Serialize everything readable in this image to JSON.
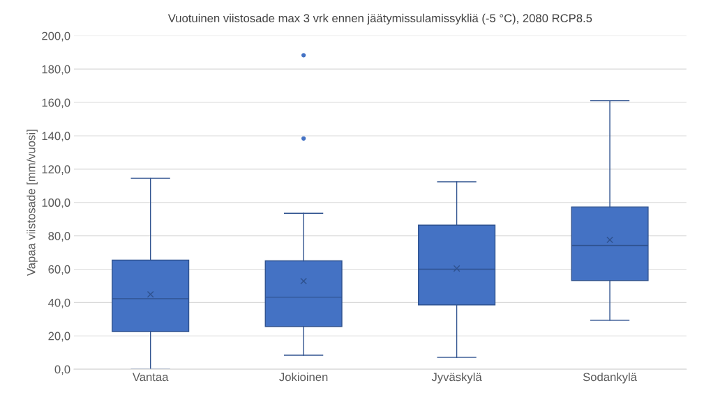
{
  "chart_data": {
    "type": "box",
    "title": "Vuotuinen viistosade max 3 vrk ennen jäätymissulamissykliä (-5 °C), 2080 RCP8.5",
    "ylabel": "Vapaa viistosade [mm/vuosi]",
    "categories": [
      "Vantaa",
      "Jokioinen",
      "Jyväskylä",
      "Sodankylä"
    ],
    "boxes": [
      {
        "low": 0,
        "q1": 22.6,
        "median": 42.3,
        "q3": 65.4,
        "high": 114.5,
        "mean": 44.9
      },
      {
        "low": 8.4,
        "q1": 25.6,
        "median": 43.2,
        "q3": 65.0,
        "high": 93.5,
        "mean": 52.8,
        "outliers": [
          188.3,
          138.4
        ]
      },
      {
        "low": 7.1,
        "q1": 38.6,
        "median": 60.0,
        "q3": 86.4,
        "high": 112.4,
        "mean": 60.4
      },
      {
        "low": 29.4,
        "q1": 53.2,
        "median": 74.2,
        "q3": 97.3,
        "high": 161.0,
        "mean": 77.6
      }
    ],
    "color": "#4472c4",
    "ylim": [
      0,
      200
    ],
    "yticks": [
      {
        "value": 0,
        "label": "0,0"
      },
      {
        "value": 20,
        "label": "20,0"
      },
      {
        "value": 40,
        "label": "40,0"
      },
      {
        "value": 60,
        "label": "60,0"
      },
      {
        "value": 80,
        "label": "80,0"
      },
      {
        "value": 100,
        "label": "100,0"
      },
      {
        "value": 120,
        "label": "120,0"
      },
      {
        "value": 140,
        "label": "140,0"
      },
      {
        "value": 160,
        "label": "160,0"
      },
      {
        "value": 180,
        "label": "180,0"
      },
      {
        "value": 200,
        "label": "200,0"
      }
    ],
    "grid": "y",
    "legend": false
  }
}
